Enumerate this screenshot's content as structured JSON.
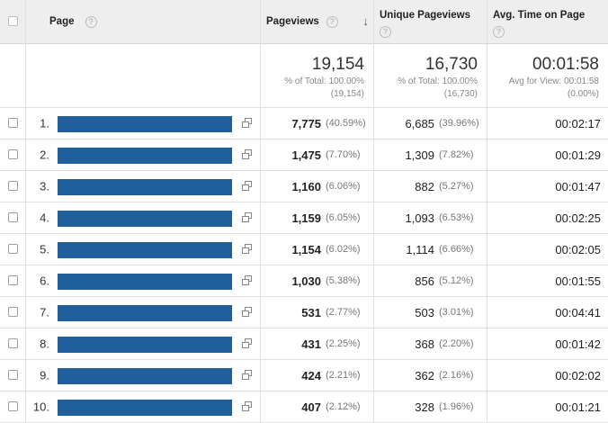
{
  "header": {
    "page_label": "Page",
    "pageviews_label": "Pageviews",
    "unique_label": "Unique Pageviews",
    "avg_time_label": "Avg. Time on Page",
    "help_glyph": "?",
    "sort_glyph": "↓"
  },
  "totals": {
    "pageviews": {
      "value": "19,154",
      "line1": "% of Total: 100.00%",
      "line2": "(19,154)"
    },
    "unique": {
      "value": "16,730",
      "line1": "% of Total: 100.00%",
      "line2": "(16,730)"
    },
    "avg_time": {
      "value": "00:01:58",
      "line1": "Avg for View: 00:01:58",
      "line2": "(0.00%)"
    }
  },
  "bar_color": "#1f5f9c",
  "rows": [
    {
      "num": "1.",
      "pv": "7,775",
      "pv_pct": "(40.59%)",
      "upv": "6,685",
      "upv_pct": "(39.96%)",
      "time": "00:02:17"
    },
    {
      "num": "2.",
      "pv": "1,475",
      "pv_pct": "(7.70%)",
      "upv": "1,309",
      "upv_pct": "(7.82%)",
      "time": "00:01:29"
    },
    {
      "num": "3.",
      "pv": "1,160",
      "pv_pct": "(6.06%)",
      "upv": "882",
      "upv_pct": "(5.27%)",
      "time": "00:01:47"
    },
    {
      "num": "4.",
      "pv": "1,159",
      "pv_pct": "(6.05%)",
      "upv": "1,093",
      "upv_pct": "(6.53%)",
      "time": "00:02:25"
    },
    {
      "num": "5.",
      "pv": "1,154",
      "pv_pct": "(6.02%)",
      "upv": "1,114",
      "upv_pct": "(6.66%)",
      "time": "00:02:05"
    },
    {
      "num": "6.",
      "pv": "1,030",
      "pv_pct": "(5.38%)",
      "upv": "856",
      "upv_pct": "(5.12%)",
      "time": "00:01:55"
    },
    {
      "num": "7.",
      "pv": "531",
      "pv_pct": "(2.77%)",
      "upv": "503",
      "upv_pct": "(3.01%)",
      "time": "00:04:41"
    },
    {
      "num": "8.",
      "pv": "431",
      "pv_pct": "(2.25%)",
      "upv": "368",
      "upv_pct": "(2.20%)",
      "time": "00:01:42"
    },
    {
      "num": "9.",
      "pv": "424",
      "pv_pct": "(2.21%)",
      "upv": "362",
      "upv_pct": "(2.16%)",
      "time": "00:02:02"
    },
    {
      "num": "10.",
      "pv": "407",
      "pv_pct": "(2.12%)",
      "upv": "328",
      "upv_pct": "(1.96%)",
      "time": "00:01:21"
    }
  ]
}
